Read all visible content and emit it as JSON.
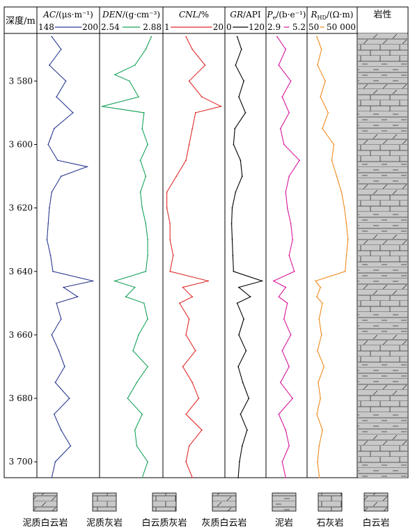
{
  "chart_data": {
    "type": "line",
    "depth_header": "深度/m",
    "ylim": [
      3565,
      3705
    ],
    "depth_ticks": [
      "3 580",
      "3 600",
      "3 620",
      "3 640",
      "3 660",
      "3 680",
      "3 700"
    ],
    "depth_tick_values": [
      3580,
      3600,
      3620,
      3640,
      3660,
      3680,
      3700
    ],
    "tracks": [
      {
        "name_italic": "AC",
        "name_rest": "/(μs·m⁻¹)",
        "min": "148",
        "max": "200",
        "range": [
          148,
          200
        ],
        "color": "#2b3a8f",
        "depth": [
          3566,
          3570,
          3575,
          3580,
          3585,
          3590,
          3595,
          3598,
          3600,
          3605,
          3607,
          3610,
          3615,
          3620,
          3625,
          3630,
          3635,
          3640,
          3643,
          3645,
          3648,
          3650,
          3655,
          3660,
          3665,
          3670,
          3675,
          3680,
          3685,
          3690,
          3695,
          3700,
          3705
        ],
        "values": [
          160,
          168,
          158,
          172,
          164,
          178,
          162,
          159,
          157,
          165,
          190,
          168,
          160,
          158,
          157,
          156,
          159,
          161,
          195,
          170,
          182,
          164,
          168,
          160,
          166,
          171,
          163,
          175,
          162,
          168,
          176,
          163,
          160
        ]
      },
      {
        "name_italic": "DEN",
        "name_rest": "/(g·cm⁻³)",
        "min": "2.54",
        "max": "2.88",
        "range": [
          2.54,
          2.88
        ],
        "color": "#19a35a",
        "depth": [
          3566,
          3570,
          3575,
          3578,
          3580,
          3585,
          3588,
          3590,
          3595,
          3600,
          3605,
          3610,
          3615,
          3620,
          3625,
          3630,
          3635,
          3640,
          3643,
          3645,
          3648,
          3650,
          3655,
          3660,
          3665,
          3670,
          3675,
          3680,
          3685,
          3690,
          3695,
          3700,
          3705
        ],
        "values": [
          2.82,
          2.79,
          2.73,
          2.62,
          2.7,
          2.75,
          2.55,
          2.78,
          2.77,
          2.8,
          2.76,
          2.79,
          2.76,
          2.77,
          2.79,
          2.8,
          2.8,
          2.79,
          2.62,
          2.73,
          2.68,
          2.78,
          2.8,
          2.75,
          2.72,
          2.8,
          2.74,
          2.69,
          2.77,
          2.73,
          2.74,
          2.8,
          2.77
        ]
      },
      {
        "name_italic": "CNL",
        "name_rest": "/%",
        "min": "1",
        "max": "20",
        "range": [
          1,
          20
        ],
        "color": "#e02b2b",
        "depth": [
          3566,
          3570,
          3575,
          3580,
          3585,
          3588,
          3590,
          3595,
          3600,
          3605,
          3610,
          3615,
          3620,
          3625,
          3630,
          3635,
          3640,
          3643,
          3645,
          3648,
          3650,
          3655,
          3660,
          3665,
          3670,
          3675,
          3680,
          3685,
          3690,
          3695,
          3700,
          3705
        ],
        "values": [
          8,
          10,
          14,
          9,
          13,
          19,
          11,
          10,
          9,
          8,
          5,
          2,
          2,
          3,
          3,
          4,
          3,
          15,
          7,
          10,
          6,
          9,
          8,
          11,
          7,
          10,
          12,
          8,
          13,
          9,
          8,
          10
        ]
      },
      {
        "name_italic": "GR",
        "name_rest": "/API",
        "min": "0",
        "max": "120",
        "range": [
          0,
          120
        ],
        "color": "#000000",
        "depth": [
          3566,
          3570,
          3575,
          3580,
          3585,
          3590,
          3595,
          3600,
          3605,
          3610,
          3615,
          3620,
          3625,
          3630,
          3635,
          3640,
          3643,
          3645,
          3648,
          3650,
          3655,
          3660,
          3665,
          3670,
          3675,
          3680,
          3685,
          3690,
          3695,
          3700,
          3705
        ],
        "values": [
          35,
          48,
          30,
          55,
          40,
          60,
          28,
          24,
          45,
          50,
          30,
          20,
          18,
          20,
          22,
          24,
          110,
          40,
          75,
          35,
          55,
          40,
          62,
          38,
          52,
          70,
          45,
          65,
          50,
          42,
          38
        ]
      },
      {
        "name_italic": "P",
        "name_sub": "e",
        "name_rest": "/(b·e⁻¹)",
        "min": "2.9",
        "max": "5.2",
        "range": [
          2.9,
          5.2
        ],
        "color": "#d6189b",
        "depth": [
          3566,
          3570,
          3575,
          3580,
          3585,
          3590,
          3595,
          3600,
          3605,
          3610,
          3615,
          3620,
          3625,
          3630,
          3635,
          3640,
          3643,
          3645,
          3648,
          3650,
          3655,
          3660,
          3665,
          3670,
          3675,
          3680,
          3685,
          3690,
          3695,
          3700,
          3705
        ],
        "values": [
          3.5,
          4.0,
          3.6,
          4.3,
          3.8,
          4.2,
          3.7,
          3.9,
          4.8,
          4.2,
          4.0,
          4.1,
          4.3,
          4.4,
          4.2,
          4.5,
          3.3,
          4.0,
          3.6,
          4.1,
          3.9,
          4.3,
          3.8,
          4.2,
          3.7,
          4.4,
          3.6,
          4.0,
          4.2,
          3.8,
          4.0
        ]
      },
      {
        "name_italic": "R",
        "name_sub": "HD",
        "name_rest": "/(Ω·m)",
        "min": "50",
        "max": "50 000",
        "range": [
          50,
          50000
        ],
        "scale": "log",
        "color": "#f08a1c",
        "depth": [
          3566,
          3570,
          3575,
          3580,
          3585,
          3590,
          3595,
          3600,
          3605,
          3610,
          3615,
          3620,
          3625,
          3630,
          3635,
          3640,
          3643,
          3645,
          3648,
          3650,
          3655,
          3660,
          3665,
          3670,
          3675,
          3680,
          3685,
          3690,
          3695,
          3700,
          3705
        ],
        "values": [
          180,
          350,
          200,
          600,
          300,
          900,
          400,
          2000,
          1500,
          3000,
          6000,
          9000,
          12000,
          15000,
          12000,
          10000,
          150,
          300,
          180,
          400,
          250,
          350,
          200,
          500,
          220,
          300,
          180,
          400,
          250,
          200,
          260
        ]
      }
    ],
    "lithology_header": "岩性",
    "legend": [
      {
        "label": "泥质白云岩",
        "pattern": "argillaceous-dolomite"
      },
      {
        "label": "泥质灰岩",
        "pattern": "argillaceous-limestone"
      },
      {
        "label": "白云质灰岩",
        "pattern": "dolomitic-limestone"
      },
      {
        "label": "灰质白云岩",
        "pattern": "calcareous-dolomite"
      },
      {
        "label": "泥岩",
        "pattern": "mudstone"
      },
      {
        "label": "石灰岩",
        "pattern": "limestone"
      },
      {
        "label": "白云岩",
        "pattern": "dolomite"
      }
    ]
  }
}
